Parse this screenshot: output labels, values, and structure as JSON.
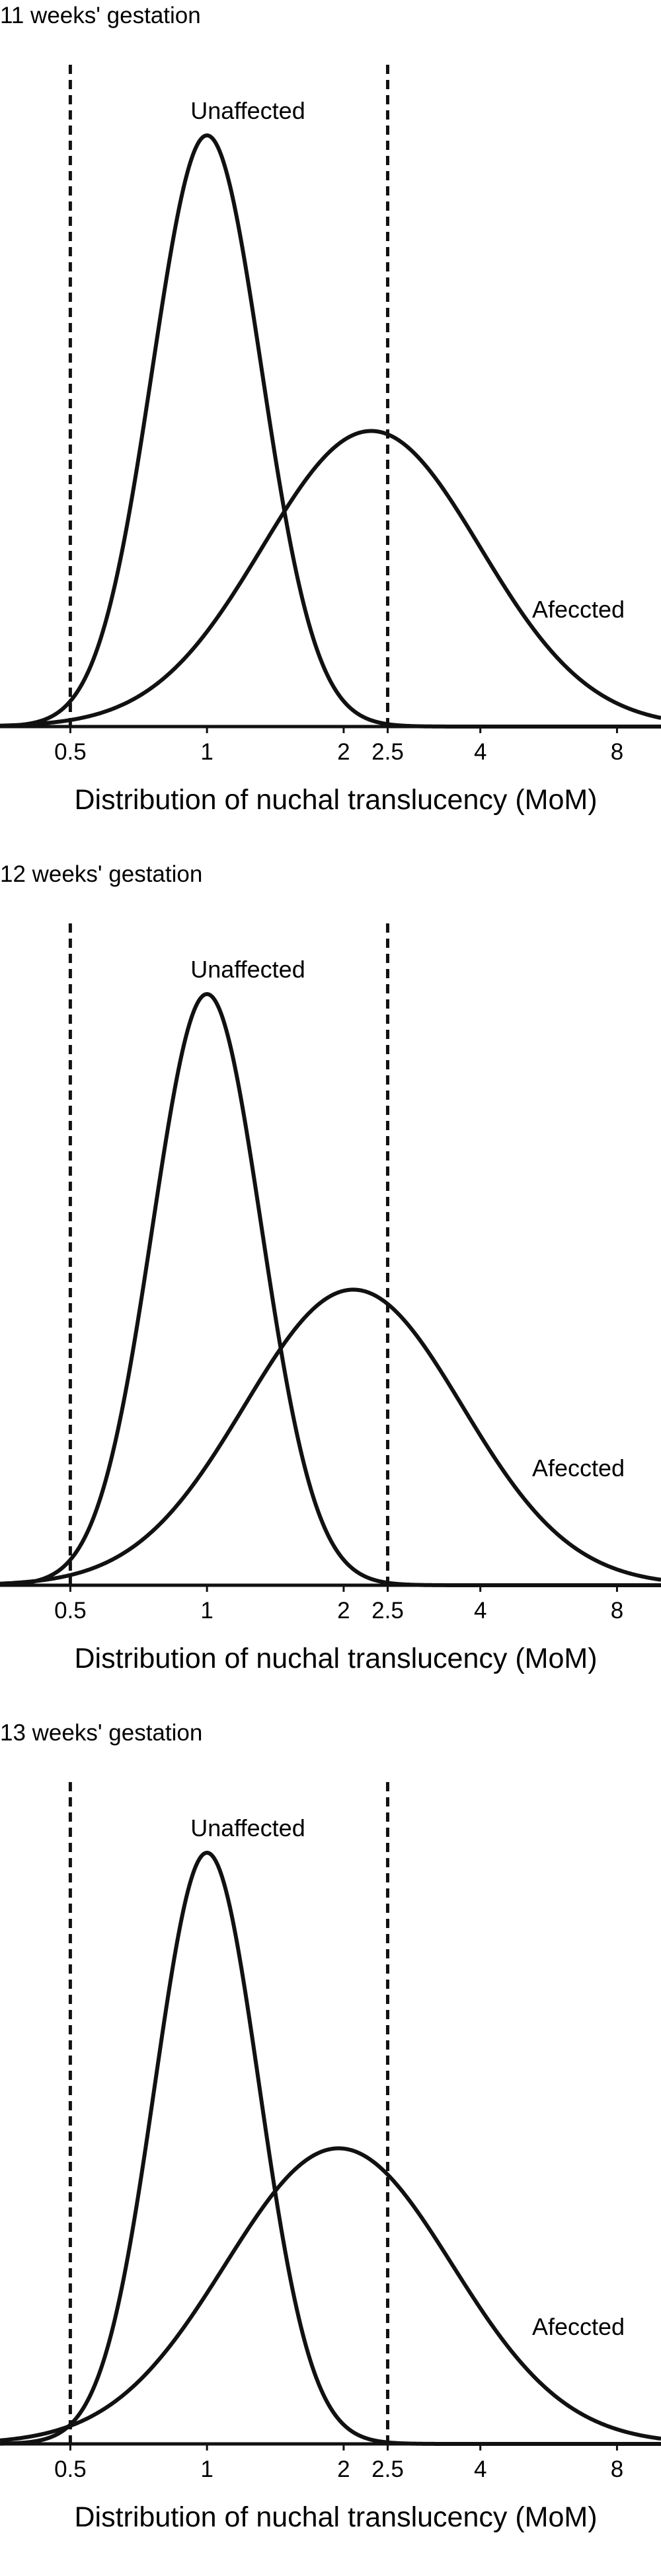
{
  "chart_data": [
    {
      "type": "line",
      "title": "11 weeks' gestation",
      "xlabel": "Distribution of nuchal translucency (MoM)",
      "ylabel": "",
      "x_scale": "log",
      "xlim": [
        0.35,
        10
      ],
      "xticks": [
        0.5,
        1,
        2,
        2.5,
        4,
        8
      ],
      "xtick_labels": [
        "0.5",
        "1",
        "2",
        "2.5",
        "4",
        "8"
      ],
      "reference_lines": [
        0.5,
        2.5
      ],
      "grid": false,
      "series": [
        {
          "name": "Unaffected",
          "peak_mom": 1.0,
          "log10_sd": 0.12,
          "relative_peak_height": 1.0
        },
        {
          "name": "Afeccted",
          "peak_mom": 2.3,
          "log10_sd": 0.24,
          "relative_peak_height": 0.5
        }
      ]
    },
    {
      "type": "line",
      "title": "12 weeks' gestation",
      "xlabel": "Distribution of nuchal translucency (MoM)",
      "ylabel": "",
      "x_scale": "log",
      "xlim": [
        0.35,
        10
      ],
      "xticks": [
        0.5,
        1,
        2,
        2.5,
        4,
        8
      ],
      "xtick_labels": [
        "0.5",
        "1",
        "2",
        "2.5",
        "4",
        "8"
      ],
      "reference_lines": [
        0.5,
        2.5
      ],
      "grid": false,
      "series": [
        {
          "name": "Unaffected",
          "peak_mom": 1.0,
          "log10_sd": 0.12,
          "relative_peak_height": 1.0
        },
        {
          "name": "Afeccted",
          "peak_mom": 2.1,
          "log10_sd": 0.24,
          "relative_peak_height": 0.5
        }
      ]
    },
    {
      "type": "line",
      "title": "13 weeks' gestation",
      "xlabel": "Distribution of nuchal translucency (MoM)",
      "ylabel": "",
      "x_scale": "log",
      "xlim": [
        0.35,
        10
      ],
      "xticks": [
        0.5,
        1,
        2,
        2.5,
        4,
        8
      ],
      "xtick_labels": [
        "0.5",
        "1",
        "2",
        "2.5",
        "4",
        "8"
      ],
      "reference_lines": [
        0.5,
        2.5
      ],
      "grid": false,
      "series": [
        {
          "name": "Unaffected",
          "peak_mom": 1.0,
          "log10_sd": 0.115,
          "relative_peak_height": 1.0
        },
        {
          "name": "Afeccted",
          "peak_mom": 1.95,
          "log10_sd": 0.25,
          "relative_peak_height": 0.5
        }
      ]
    }
  ]
}
